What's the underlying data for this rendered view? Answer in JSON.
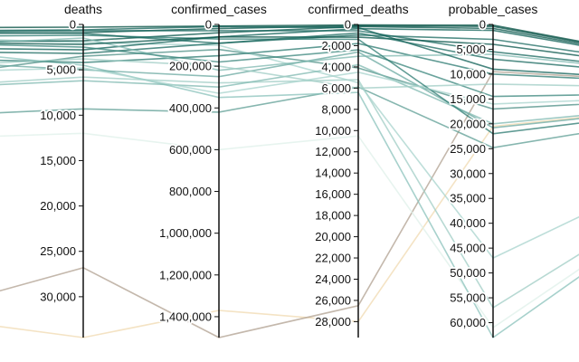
{
  "chart_data": {
    "type": "parallel-coordinates",
    "axes": [
      {
        "name": "deaths",
        "ticks": [
          0,
          5000,
          10000,
          15000,
          20000,
          25000,
          30000
        ],
        "tick_labels": [
          "0",
          "5,000",
          "10,000",
          "15,000",
          "20,000",
          "25,000",
          "30,000"
        ],
        "range": [
          0,
          34500
        ]
      },
      {
        "name": "confirmed_cases",
        "ticks": [
          0,
          200000,
          400000,
          600000,
          800000,
          1000000,
          1200000,
          1400000
        ],
        "tick_labels": [
          "0",
          "200,000",
          "400,000",
          "600,000",
          "800,000",
          "1,000,000",
          "1,200,000",
          "1,400,000"
        ],
        "range": [
          0,
          1500000
        ]
      },
      {
        "name": "confirmed_deaths",
        "ticks": [
          0,
          2000,
          4000,
          6000,
          8000,
          10000,
          12000,
          14000,
          16000,
          18000,
          20000,
          22000,
          24000,
          26000,
          28000
        ],
        "tick_labels": [
          "0",
          "2,000",
          "4,000",
          "6,000",
          "8,000",
          "10,000",
          "12,000",
          "14,000",
          "16,000",
          "18,000",
          "20,000",
          "22,000",
          "24,000",
          "26,000",
          "28,000"
        ],
        "range": [
          0,
          29500
        ]
      },
      {
        "name": "probable_cases",
        "ticks": [
          0,
          5000,
          10000,
          15000,
          20000,
          25000,
          30000,
          35000,
          40000,
          45000,
          50000,
          55000,
          60000
        ],
        "tick_labels": [
          "0",
          "5,000",
          "10,000",
          "15,000",
          "20,000",
          "25,000",
          "30,000",
          "35,000",
          "40,000",
          "45,000",
          "50,000",
          "55,000",
          "60,000"
        ],
        "range": [
          0,
          63000
        ]
      }
    ],
    "color_scale": {
      "low": "#f0d9b0",
      "high": "#014d40",
      "mid": "#a8d5c9"
    },
    "records": [
      {
        "values": [
          34500,
          1370000,
          28000,
          20500
        ],
        "color": "#f0d9b0",
        "prev": 32500
      },
      {
        "values": [
          26800,
          1500000,
          26500,
          9500
        ],
        "color": "#b0a090",
        "prev": 31000
      },
      {
        "values": [
          12000,
          600000,
          10500,
          61000
        ],
        "color": "#dff0ea",
        "prev": 12500
      },
      {
        "values": [
          9300,
          420000,
          5900,
          24800
        ],
        "color": "#5e9e94",
        "prev": 10000
      },
      {
        "values": [
          5800,
          280000,
          5200,
          57000
        ],
        "color": "#9fccc4",
        "prev": 6700
      },
      {
        "values": [
          4500,
          350000,
          6400,
          63000
        ],
        "color": "#8ac2bb",
        "prev": 3000
      },
      {
        "values": [
          3500,
          120000,
          4100,
          17000
        ],
        "color": "#4d8f86",
        "prev": 5500
      },
      {
        "values": [
          2000,
          100000,
          5500,
          47000
        ],
        "color": "#a7d3cc",
        "prev": 1500
      },
      {
        "values": [
          6200,
          300000,
          3800,
          20000
        ],
        "color": "#7fb8b0",
        "prev": 6900
      },
      {
        "values": [
          5000,
          250000,
          2600,
          20800
        ],
        "color": "#6aa8a0",
        "prev": 4200
      },
      {
        "values": [
          4200,
          150000,
          1800,
          10000
        ],
        "color": "#2b7a70",
        "prev": 3800
      },
      {
        "values": [
          3200,
          90000,
          1000,
          3000
        ],
        "color": "#1b6a60",
        "prev": 3000
      },
      {
        "values": [
          2800,
          60000,
          400,
          1200
        ],
        "color": "#0e5f55",
        "prev": 2600
      },
      {
        "values": [
          1800,
          40000,
          200,
          800
        ],
        "color": "#07544a",
        "prev": 1900
      },
      {
        "values": [
          900,
          20000,
          120,
          400
        ],
        "color": "#035045",
        "prev": 1000
      },
      {
        "values": [
          300,
          8000,
          50,
          150
        ],
        "color": "#014d40",
        "prev": 350
      },
      {
        "values": [
          1500,
          220000,
          3000,
          6000
        ],
        "color": "#7fb8b0",
        "prev": 2200
      },
      {
        "values": [
          700,
          30000,
          600,
          5500
        ],
        "color": "#1b6a60",
        "prev": 800
      },
      {
        "values": [
          2500,
          180000,
          2400,
          14500
        ],
        "color": "#3a857c",
        "prev": 2100
      },
      {
        "values": [
          3800,
          200000,
          6000,
          12000
        ],
        "color": "#9fccc4",
        "prev": 4500
      },
      {
        "values": [
          1200,
          70000,
          1400,
          22000
        ],
        "color": "#2b7a70",
        "prev": 1300
      },
      {
        "values": [
          4800,
          330000,
          4500,
          16000
        ],
        "color": "#a7d3cc",
        "prev": 5200
      },
      {
        "values": [
          600,
          10000,
          300,
          9000
        ],
        "color": "#0e5f55",
        "prev": 700
      },
      {
        "values": [
          2200,
          60000,
          1200,
          4000
        ],
        "color": "#07544a",
        "prev": 2000
      },
      {
        "values": [
          1000,
          90000,
          800,
          7000
        ],
        "color": "#1b6a60",
        "prev": 900
      }
    ]
  }
}
